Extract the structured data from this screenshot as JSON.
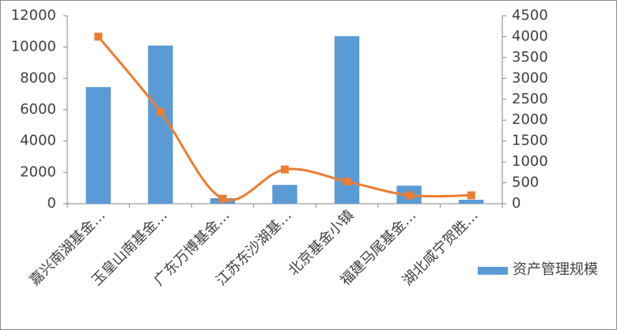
{
  "chart_data": {
    "type": "bar",
    "categories": [
      "嘉兴南湖基金…",
      "玉皇山南基金…",
      "广东万博基金…",
      "江苏东沙湖基…",
      "北京基金小镇",
      "福建马尾基金…",
      "湖北咸宁贺胜…"
    ],
    "series": [
      {
        "name": "资产管理规模",
        "type": "bar",
        "color": "#5b9bd5",
        "values": [
          7450,
          10100,
          350,
          1200,
          10700,
          1150,
          250
        ]
      },
      {
        "type": "line",
        "axis": "y2",
        "color": "#ed7d31",
        "values": [
          4000,
          2200,
          120,
          820,
          530,
          200,
          200
        ]
      }
    ],
    "ylim": [
      0,
      12000
    ],
    "yticks": [
      0,
      2000,
      4000,
      6000,
      8000,
      10000,
      12000
    ],
    "y2lim": [
      0,
      4500
    ],
    "y2ticks": [
      0,
      500,
      1000,
      1500,
      2000,
      2500,
      3000,
      3500,
      4000,
      4500
    ],
    "legend": "right"
  }
}
